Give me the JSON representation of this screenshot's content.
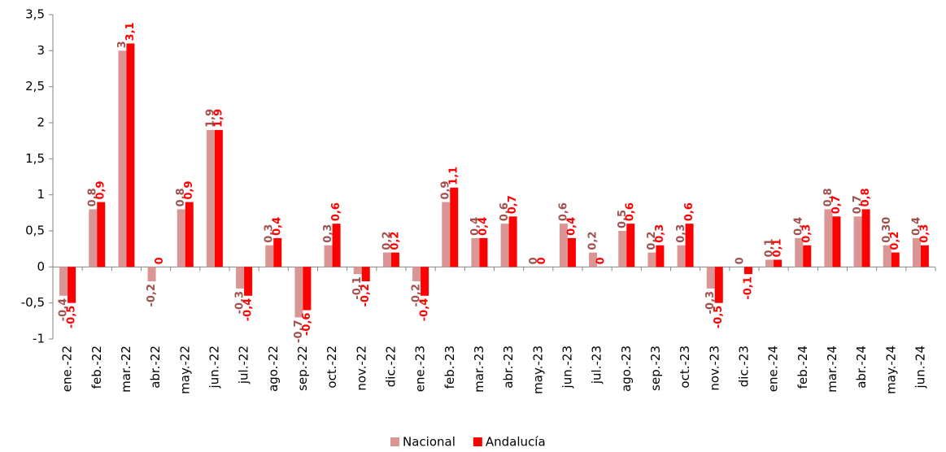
{
  "chart_data": {
    "type": "bar",
    "categories": [
      "ene.-22",
      "feb.-22",
      "mar.-22",
      "abr.-22",
      "may.-22",
      "jun.-22",
      "jul.-22",
      "ago.-22",
      "sep.-22",
      "oct.-22",
      "nov.-22",
      "dic.-22",
      "ene.-23",
      "feb.-23",
      "mar.-23",
      "abr.-23",
      "may.-23",
      "jun.-23",
      "jul.-23",
      "ago.-23",
      "sep.-23",
      "oct.-23",
      "nov.-23",
      "dic.-23",
      "ene.-24",
      "feb.-24",
      "mar.-24",
      "abr.-24",
      "may.-24",
      "jun.-24"
    ],
    "series": [
      {
        "name": "Nacional",
        "color": "#d99694",
        "label_color": "#a0504d",
        "values": [
          -0.4,
          0.8,
          3,
          -0.2,
          0.8,
          1.9,
          -0.3,
          0.3,
          -0.7,
          0.3,
          -0.1,
          0.2,
          -0.2,
          0.9,
          0.4,
          0.6,
          0,
          0.6,
          0.2,
          0.5,
          0.2,
          0.3,
          -0.3,
          0,
          0.1,
          0.4,
          0.8,
          0.7,
          0.3,
          0.4
        ],
        "value_labels": [
          "-0,4",
          "0,8",
          "3",
          "-0,2",
          "0,8",
          "1,9",
          "-0,3",
          "0,3",
          "-0,7",
          "0,3",
          "-0,1",
          "0,2",
          "-0,2",
          "0,9",
          "0,4",
          "0,6",
          "0",
          "0,6",
          "0,2",
          "0,5",
          "0,2",
          "0,3",
          "-0,3",
          "0",
          "0,1",
          "0,4",
          "0,8",
          "0,7",
          "0,30",
          "0,4"
        ]
      },
      {
        "name": "Andalucía",
        "color": "#ff0000",
        "label_color": "#ff0000",
        "values": [
          -0.5,
          0.9,
          3.1,
          0,
          0.9,
          1.9,
          -0.4,
          0.4,
          -0.6,
          0.6,
          -0.2,
          0.2,
          -0.4,
          1.1,
          0.4,
          0.7,
          0,
          0.4,
          0,
          0.6,
          0.3,
          0.6,
          -0.5,
          -0.1,
          0.1,
          0.3,
          0.7,
          0.8,
          0.2,
          0.3
        ],
        "value_labels": [
          "-0,5",
          "0,9",
          "3,1",
          "0",
          "0,9",
          "1,9",
          "-0,4",
          "0,4",
          "-0,6",
          "0,6",
          "-0,2",
          "0,2",
          "-0,4",
          "1,1",
          "0,4",
          "0,7",
          "0",
          "0,4",
          "0",
          "0,6",
          "0,3",
          "0,6",
          "-0,5",
          "-0,1",
          "0,1",
          "0,3",
          "0,7",
          "0,8",
          "0,2",
          "0,3"
        ]
      }
    ],
    "ylim": [
      -1,
      3.5
    ],
    "yticks": [
      -1,
      {
        "value": -0.5,
        "label": "-0,5"
      },
      0,
      {
        "value": 0.5,
        "label": "0,5"
      },
      1,
      {
        "value": 1.5,
        "label": "1,5"
      },
      2,
      {
        "value": 2.5,
        "label": "2,5"
      },
      3,
      {
        "value": 3.5,
        "label": "3,5"
      }
    ],
    "grid": false,
    "legend": "bottom"
  }
}
